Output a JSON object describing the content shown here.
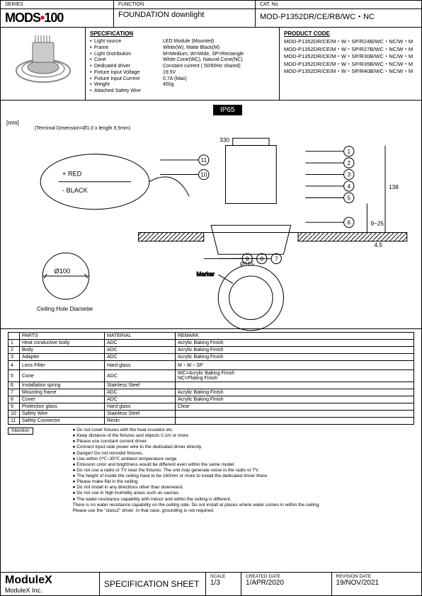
{
  "header": {
    "series_label": "SERIES",
    "series_value": "MODS 100",
    "function_label": "FUNCTION",
    "function_value": "FOUNDATION downlight",
    "cat_label": "CAT. No.",
    "cat_value": "MOD-P1352DR/CE/RB/WC・NC"
  },
  "specification": {
    "title": "SPECIFICATION",
    "items": [
      {
        "k": "Light source",
        "v": "LED Module (Mounted)"
      },
      {
        "k": "Frame",
        "v": "White(W), Matte Black(M)"
      },
      {
        "k": "Light Distribution",
        "v": "M=Medium, W=Wide, SP=Rectangle"
      },
      {
        "k": "Cone",
        "v": "White Cone(WC), Natural Cone(NC)"
      },
      {
        "k": "Dedicated driver",
        "v": "Constant current ( 50/60Hz shared)"
      },
      {
        "k": "Fixture Input Voltage",
        "v": "19.5V"
      },
      {
        "k": "Fixture Input Current",
        "v": "0.7A (Max)"
      },
      {
        "k": "Weight",
        "v": "450g"
      },
      {
        "k": "Attached Safety Wire",
        "v": ""
      }
    ]
  },
  "product_code": {
    "title": "PRODUCT CODE",
    "codes": [
      "MOD-P1352DR/CE/M・W・SP/R24B/WC・NC/W・M",
      "MOD-P1352DR/CE/M・W・SP/R27B/WC・NC/W・M",
      "MOD-P1352DR/CE/M・W・SP/R30B/WC・NC/W・M",
      "MOD-P1352DR/CE/M・W・SP/R35B/WC・NC/W・M",
      "MOD-P1352DR/CE/M・W・SP/R40B/WC・NC/W・M"
    ]
  },
  "ip_rating": "IP65",
  "diagram": {
    "unit_label": "[mm]",
    "terminal_note": "(Terminal Dimension=Ø1.0 x length 9.5mm)",
    "wire_red": "+ RED",
    "wire_black": "- BLACK",
    "hole_dia": "Ø100",
    "hole_label": "Ceiling Hole Diameter",
    "marker": "Marker",
    "dim_330": "330",
    "dim_115": "Ø115",
    "dim_138": "138",
    "dim_925": "9~25",
    "dim_45": "4.5",
    "callouts": [
      "1",
      "2",
      "3",
      "4",
      "5",
      "6",
      "7",
      "8",
      "9",
      "10",
      "11"
    ]
  },
  "parts": {
    "headers": [
      "",
      "PARTS",
      "MATERIAL",
      "REMARK"
    ],
    "rows": [
      [
        "1",
        "Heat conductive body",
        "ADC",
        "Acrylic Baking Finish"
      ],
      [
        "2",
        "Body",
        "ADC",
        "Acrylic Baking Finish"
      ],
      [
        "3",
        "Adapter",
        "ADC",
        "Acrylic Baking Finish"
      ],
      [
        "4",
        "Lens Filter",
        "Hard glass",
        "M・W・SP"
      ],
      [
        "5",
        "Cone",
        "ADC",
        "WC=Acrylic Baking Finish\nNC=Plating Finish"
      ],
      [
        "6",
        "Installation spring",
        "Stainless Steel",
        ""
      ],
      [
        "7",
        "Mounting frame",
        "ADC",
        "Acrylic Baking Finish"
      ],
      [
        "8",
        "Cover",
        "ADC",
        "Acrylic Baking Finish"
      ],
      [
        "9",
        "Protection glass",
        "Hard glass",
        "Clear"
      ],
      [
        "10",
        "Safety Wire",
        "Stainless Steel",
        ""
      ],
      [
        "11",
        "Safety Connector",
        "Resin",
        ""
      ]
    ]
  },
  "attention": {
    "label": "Attention",
    "notes": [
      "Do not cover fixtures with the heat insulator etc.",
      "Keep distance of the fixtures and objects 0.1m or more.",
      "Please use constant current driver.",
      "Connect input-side power wire to the dedicated driver directly.",
      "Danger! Do not remodel fixtures.",
      "Use within 0℃~35℃ ambient temperature range",
      "Emission color and brightness would be different even within the same model.",
      "Do not use a radio or TV near the fixtures. The unit may generate noise in the radio or TV.",
      "The height of inside the ceiling have to be 160mm or more to install the dedicated driver there.",
      "Please make flat in the ceiling.",
      "Do not install in any directions other than downward.",
      "Do not use in high-humidity areas such as saunas.",
      "The water-resistance capability with indoor and within the ceiling is different.\nThere is no water resistance capability on the ceiling side. Do not install at places where water comes in within the ceiling.\nPlease use the \"class2\" driver. In that case, grounding is not required."
    ]
  },
  "footer": {
    "brand": "ModuleX",
    "company": "ModuleX Inc.",
    "sheet_title": "SPECIFICATION SHEET",
    "scale_label": "SCALE",
    "scale_value": "1/3",
    "created_label": "CREATED DATE",
    "created_value": "1/APR/2020",
    "revision_label": "REVISION DATE",
    "revision_value": "19/NOV/2021"
  }
}
